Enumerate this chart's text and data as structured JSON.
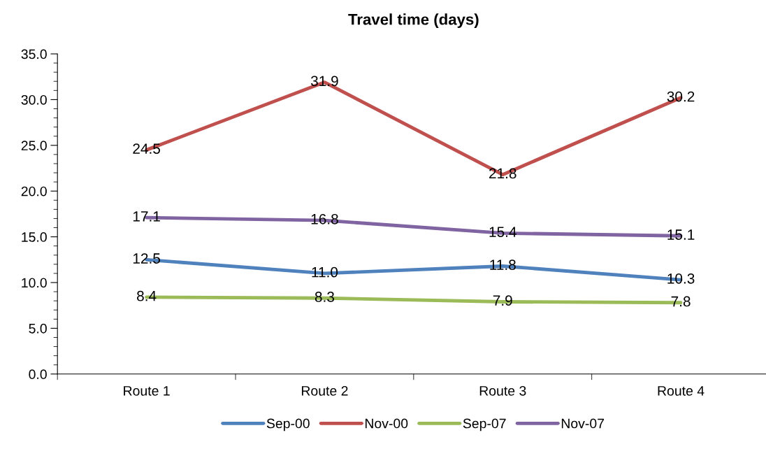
{
  "chart_data": {
    "type": "line",
    "title": "Travel time (days)",
    "categories": [
      "Route 1",
      "Route 2",
      "Route 3",
      "Route 4"
    ],
    "series": [
      {
        "name": "Sep-00",
        "color": "#4f81bd",
        "values": [
          12.5,
          11.0,
          11.8,
          10.3
        ],
        "value_labels": [
          "12.5",
          "11.0",
          "11.8",
          "10.3"
        ]
      },
      {
        "name": "Nov-00",
        "color": "#c0504d",
        "values": [
          24.5,
          31.9,
          21.8,
          30.2
        ],
        "value_labels": [
          "24.5",
          "31.9",
          "21.8",
          "30.2"
        ]
      },
      {
        "name": "Sep-07",
        "color": "#9bbb59",
        "values": [
          8.4,
          8.3,
          7.9,
          7.8
        ],
        "value_labels": [
          "8.4",
          "8.3",
          "7.9",
          "7.8"
        ]
      },
      {
        "name": "Nov-07",
        "color": "#8064a2",
        "values": [
          17.1,
          16.8,
          15.4,
          15.1
        ],
        "value_labels": [
          "17.1",
          "16.8",
          "15.4",
          "15.1"
        ]
      }
    ],
    "ylim": [
      0,
      35
    ],
    "yticks": [
      {
        "value": 0,
        "label": "0.0"
      },
      {
        "value": 1,
        "label": null
      },
      {
        "value": 2,
        "label": null
      },
      {
        "value": 3,
        "label": null
      },
      {
        "value": 4,
        "label": null
      },
      {
        "value": 5,
        "label": "5.0"
      },
      {
        "value": 6,
        "label": null
      },
      {
        "value": 7,
        "label": null
      },
      {
        "value": 8,
        "label": null
      },
      {
        "value": 9,
        "label": null
      },
      {
        "value": 10,
        "label": "10.0"
      },
      {
        "value": 11,
        "label": null
      },
      {
        "value": 12,
        "label": null
      },
      {
        "value": 13,
        "label": null
      },
      {
        "value": 14,
        "label": null
      },
      {
        "value": 15,
        "label": "15.0"
      },
      {
        "value": 16,
        "label": null
      },
      {
        "value": 17,
        "label": null
      },
      {
        "value": 18,
        "label": null
      },
      {
        "value": 19,
        "label": null
      },
      {
        "value": 20,
        "label": "20.0"
      },
      {
        "value": 21,
        "label": null
      },
      {
        "value": 22,
        "label": null
      },
      {
        "value": 23,
        "label": null
      },
      {
        "value": 24,
        "label": null
      },
      {
        "value": 25,
        "label": "25.0"
      },
      {
        "value": 26,
        "label": null
      },
      {
        "value": 27,
        "label": null
      },
      {
        "value": 28,
        "label": null
      },
      {
        "value": 29,
        "label": null
      },
      {
        "value": 30,
        "label": "30.0"
      },
      {
        "value": 31,
        "label": null
      },
      {
        "value": 32,
        "label": null
      },
      {
        "value": 33,
        "label": null
      },
      {
        "value": 34,
        "label": null
      },
      {
        "value": 35,
        "label": "35.0"
      }
    ],
    "grid": false,
    "legend": "bottom",
    "marker": "none",
    "line_style": "solid"
  }
}
